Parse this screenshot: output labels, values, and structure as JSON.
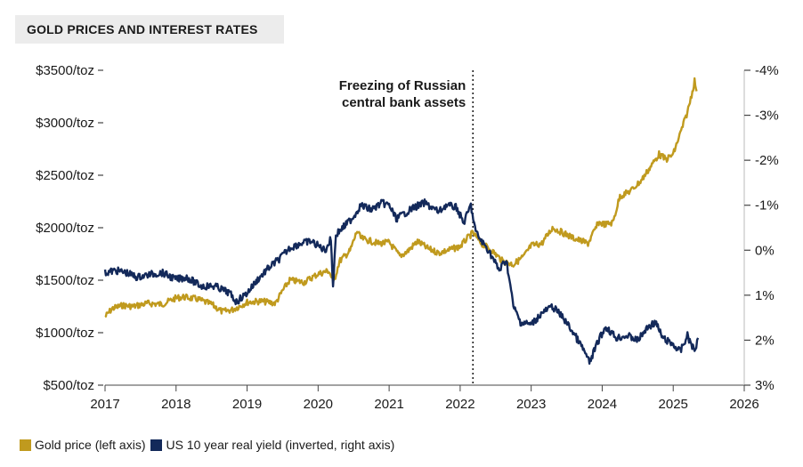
{
  "title": "GOLD PRICES AND INTEREST RATES",
  "colors": {
    "gold": "#c09a1e",
    "yield": "#13295a",
    "axis": "#444444",
    "marker": "#222222"
  },
  "annotation": {
    "lines": [
      "Freezing of Russian",
      "central bank assets"
    ],
    "x": 2022.18
  },
  "legend": [
    {
      "label": "Gold price (left axis)",
      "color": "#c09a1e"
    },
    {
      "label": "US 10 year real yield (inverted, right axis)",
      "color": "#13295a"
    }
  ],
  "chart_data": {
    "type": "line",
    "x_ticks": [
      "2017",
      "2018",
      "2019",
      "2020",
      "2021",
      "2022",
      "2023",
      "2024",
      "2025",
      "2026"
    ],
    "xlim": [
      2017,
      2026
    ],
    "left_axis": {
      "ylim": [
        500,
        3500
      ],
      "ticks": [
        500,
        1000,
        1500,
        2000,
        2500,
        3000,
        3500
      ],
      "labels": [
        "$500/toz",
        "$1000/toz",
        "$1500/toz",
        "$2000/toz",
        "$2500/toz",
        "$3000/toz",
        "$3500/toz"
      ]
    },
    "right_axis": {
      "ylim": [
        3,
        -4
      ],
      "inverted": true,
      "ticks": [
        3,
        2,
        1,
        0,
        -1,
        -2,
        -3,
        -4
      ],
      "labels": [
        "3%",
        "2%",
        "1%",
        "0%",
        "-1%",
        "-2%",
        "-3%",
        "-4%"
      ]
    },
    "series": [
      {
        "name": "Gold price (left axis)",
        "axis": "left",
        "x": [
          2017.0,
          2017.1,
          2017.25,
          2017.4,
          2017.6,
          2017.8,
          2018.0,
          2018.1,
          2018.3,
          2018.5,
          2018.65,
          2018.8,
          2019.0,
          2019.2,
          2019.4,
          2019.5,
          2019.6,
          2019.8,
          2020.0,
          2020.15,
          2020.22,
          2020.3,
          2020.45,
          2020.55,
          2020.6,
          2020.7,
          2020.85,
          2021.0,
          2021.15,
          2021.25,
          2021.4,
          2021.55,
          2021.7,
          2021.85,
          2022.0,
          2022.1,
          2022.18,
          2022.3,
          2022.45,
          2022.6,
          2022.75,
          2022.9,
          2023.0,
          2023.15,
          2023.3,
          2023.45,
          2023.6,
          2023.8,
          2023.95,
          2024.05,
          2024.15,
          2024.25,
          2024.4,
          2024.55,
          2024.7,
          2024.8,
          2024.9,
          2025.0,
          2025.1,
          2025.2,
          2025.27,
          2025.3,
          2025.33
        ],
        "values": [
          1150,
          1230,
          1260,
          1250,
          1280,
          1270,
          1330,
          1340,
          1320,
          1270,
          1200,
          1220,
          1290,
          1300,
          1280,
          1400,
          1500,
          1480,
          1560,
          1590,
          1480,
          1680,
          1780,
          1970,
          1900,
          1880,
          1850,
          1860,
          1730,
          1770,
          1870,
          1800,
          1760,
          1790,
          1820,
          1900,
          1950,
          1850,
          1780,
          1680,
          1650,
          1730,
          1830,
          1850,
          2000,
          1950,
          1900,
          1850,
          2050,
          2030,
          2050,
          2300,
          2350,
          2450,
          2600,
          2700,
          2650,
          2700,
          2900,
          3100,
          3300,
          3400,
          3300
        ]
      },
      {
        "name": "US 10 year real yield (inverted, right axis)",
        "axis": "right",
        "x": [
          2017.0,
          2017.15,
          2017.3,
          2017.45,
          2017.6,
          2017.8,
          2018.0,
          2018.15,
          2018.35,
          2018.55,
          2018.75,
          2018.85,
          2019.0,
          2019.15,
          2019.3,
          2019.45,
          2019.6,
          2019.75,
          2019.9,
          2020.0,
          2020.1,
          2020.18,
          2020.21,
          2020.25,
          2020.35,
          2020.5,
          2020.6,
          2020.75,
          2020.9,
          2021.0,
          2021.1,
          2021.2,
          2021.35,
          2021.5,
          2021.7,
          2021.8,
          2021.95,
          2022.05,
          2022.15,
          2022.22,
          2022.3,
          2022.4,
          2022.55,
          2022.65,
          2022.75,
          2022.85,
          2023.0,
          2023.15,
          2023.3,
          2023.45,
          2023.6,
          2023.75,
          2023.82,
          2023.95,
          2024.05,
          2024.2,
          2024.35,
          2024.5,
          2024.65,
          2024.75,
          2024.85,
          2025.0,
          2025.1,
          2025.2,
          2025.3,
          2025.35
        ],
        "values": [
          0.5,
          0.45,
          0.5,
          0.6,
          0.55,
          0.5,
          0.65,
          0.6,
          0.8,
          0.8,
          0.95,
          1.15,
          0.95,
          0.65,
          0.4,
          0.2,
          -0.05,
          -0.15,
          -0.2,
          -0.1,
          0.0,
          -0.25,
          0.8,
          -0.35,
          -0.5,
          -0.75,
          -1.0,
          -0.9,
          -1.05,
          -1.0,
          -0.7,
          -0.8,
          -0.95,
          -1.05,
          -0.85,
          -1.0,
          -0.95,
          -0.6,
          -1.0,
          -0.4,
          -0.2,
          0.0,
          0.45,
          0.2,
          1.25,
          1.6,
          1.65,
          1.4,
          1.25,
          1.5,
          1.85,
          2.25,
          2.5,
          2.0,
          1.7,
          1.95,
          1.9,
          2.0,
          1.7,
          1.6,
          1.95,
          2.1,
          2.25,
          1.9,
          2.25,
          1.95
        ]
      }
    ]
  }
}
